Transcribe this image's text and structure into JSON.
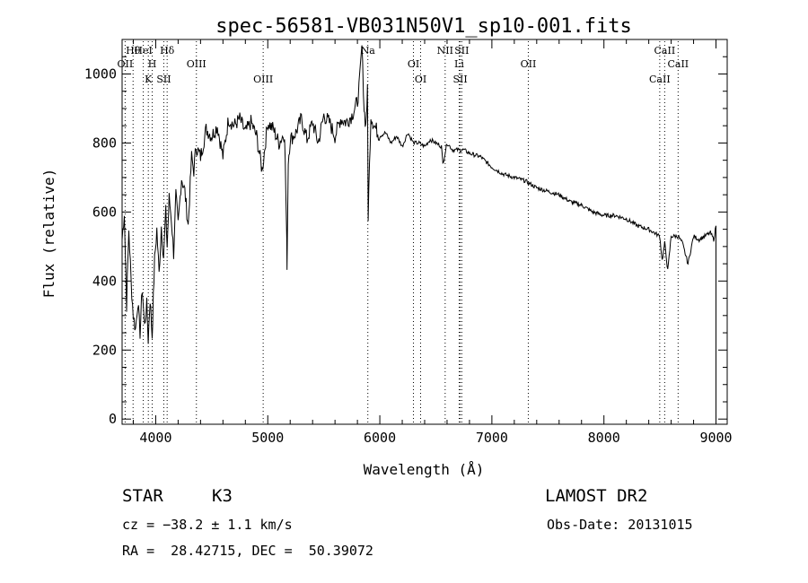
{
  "chart_data": {
    "type": "line",
    "title": "spec-56581-VB031N50V1_sp10-001.fits",
    "xlabel": "Wavelength (Å)",
    "ylabel": "Flux (relative)",
    "xlim": [
      3700,
      9100
    ],
    "ylim": [
      -15,
      1100
    ],
    "xticks": [
      4000,
      5000,
      6000,
      7000,
      8000,
      9000
    ],
    "yticks": [
      0,
      200,
      400,
      600,
      800,
      1000
    ],
    "grid": false,
    "line_color": "#000000",
    "line_labels_color": "#000000",
    "marker_color": "#ff0000",
    "series": [
      {
        "x": [
          3700,
          3720,
          3740,
          3760,
          3780,
          3800,
          3820,
          3840,
          3860,
          3880,
          3900,
          3920,
          3933,
          3950,
          3968,
          3990,
          4010,
          4030,
          4050,
          4070,
          4090,
          4102,
          4120,
          4140,
          4160,
          4180,
          4200,
          4230,
          4260,
          4290,
          4320,
          4340,
          4360,
          4400,
          4450,
          4500,
          4550,
          4600,
          4650,
          4700,
          4750,
          4800,
          4850,
          4900,
          4950,
          5000,
          5050,
          5100,
          5150,
          5167,
          5172,
          5183,
          5200,
          5250,
          5300,
          5350,
          5400,
          5450,
          5500,
          5550,
          5600,
          5650,
          5700,
          5750,
          5800,
          5820,
          5840,
          5860,
          5875,
          5890,
          5896,
          5920,
          5950,
          6000,
          6050,
          6100,
          6150,
          6200,
          6250,
          6300,
          6350,
          6400,
          6450,
          6500,
          6550,
          6563,
          6600,
          6650,
          6700,
          6750,
          6800,
          6900,
          7000,
          7100,
          7200,
          7300,
          7400,
          7500,
          7600,
          7700,
          7800,
          7900,
          8000,
          8100,
          8200,
          8300,
          8400,
          8498,
          8520,
          8542,
          8570,
          8600,
          8662,
          8700,
          8750,
          8800,
          8850,
          8900,
          8950,
          8980,
          9000
        ],
        "y": [
          520,
          600,
          330,
          550,
          400,
          300,
          260,
          340,
          250,
          380,
          270,
          330,
          230,
          350,
          240,
          460,
          550,
          420,
          560,
          470,
          600,
          500,
          640,
          580,
          480,
          650,
          560,
          700,
          660,
          560,
          760,
          720,
          790,
          760,
          840,
          820,
          850,
          760,
          870,
          850,
          870,
          830,
          860,
          820,
          720,
          860,
          840,
          800,
          830,
          560,
          450,
          750,
          810,
          830,
          870,
          810,
          860,
          800,
          880,
          860,
          820,
          870,
          860,
          880,
          920,
          980,
          1080,
          900,
          850,
          950,
          590,
          880,
          850,
          820,
          830,
          800,
          820,
          790,
          830,
          800,
          800,
          790,
          810,
          800,
          790,
          740,
          800,
          780,
          780,
          780,
          770,
          760,
          730,
          710,
          700,
          690,
          670,
          660,
          650,
          630,
          620,
          600,
          590,
          590,
          580,
          560,
          550,
          530,
          460,
          510,
          430,
          530,
          530,
          510,
          450,
          530,
          520,
          530,
          540,
          520,
          560
        ]
      }
    ],
    "lines": [
      {
        "label": "Hθ",
        "x": 3798
      },
      {
        "label": "OII",
        "x": 3727
      },
      {
        "label": "K",
        "x": 3934
      },
      {
        "label": "HeI",
        "x": 3889
      },
      {
        "label": "H",
        "x": 3969
      },
      {
        "label": "SII",
        "x": 4072
      },
      {
        "label": "Hδ",
        "x": 4102
      },
      {
        "label": "OIII",
        "x": 4363
      },
      {
        "label": "OIII",
        "x": 4959
      },
      {
        "label": "Na",
        "x": 5893
      },
      {
        "label": "OI",
        "x": 6300
      },
      {
        "label": "OI",
        "x": 6364
      },
      {
        "label": "NII",
        "x": 6583
      },
      {
        "label": "Li",
        "x": 6708
      },
      {
        "label": "SII",
        "x": 6717
      },
      {
        "label": "SII",
        "x": 6731
      },
      {
        "label": "OII",
        "x": 7325
      },
      {
        "label": "CaII",
        "x": 8498
      },
      {
        "label": "CaII",
        "x": 8542
      },
      {
        "label": "CaII",
        "x": 8662
      }
    ]
  },
  "info": {
    "object_type": "STAR",
    "subclass": "K3",
    "survey": "LAMOST DR2",
    "velocity": "cz = −38.2 ± 1.1 km/s",
    "obs_date": "Obs-Date: 20131015",
    "coords": "RA =  28.42715, DEC =  50.39072"
  }
}
